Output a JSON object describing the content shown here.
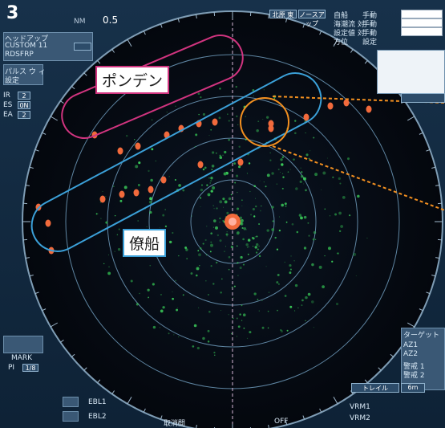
{
  "top": {
    "number": "3",
    "range_unit": "NM",
    "range_value": "0.5",
    "mode_tags": [
      "北原 東",
      "ノースアップ"
    ],
    "info_rows": [
      {
        "label": "自船",
        "val": "手動"
      },
      {
        "label": "海潮流 対",
        "val": "手動"
      },
      {
        "label": "設定値 対",
        "val": "手動"
      },
      {
        "label": "方位",
        "val": "設定"
      }
    ]
  },
  "left": {
    "head_up": "ヘッドアップ",
    "custom": "CUSTOM 11",
    "mode_code": "RDSFRP",
    "pulse": "パルス ウ ィ",
    "setting": "設定",
    "params": [
      {
        "label": "IR",
        "val": "2"
      },
      {
        "label": "ES",
        "val": "0N"
      },
      {
        "label": "EA",
        "val": "2"
      }
    ]
  },
  "callouts": {
    "pontoon": "ポンデン",
    "consort_ship": "僚船"
  },
  "bottom": {
    "mark_label": "MARK",
    "pi_label": "PI",
    "pi_value": "1/8",
    "ebl1": "EBL1",
    "ebl2": "EBL2",
    "vrm1": "VRM1",
    "vrm2": "VRM2",
    "bottom_center_left": "取消間",
    "bottom_center_right": "OFF"
  },
  "right": {
    "tag_label": "ターゲット",
    "az1": "AZ1",
    "az2": "AZ2",
    "hz1": "警戒 1",
    "hz2": "警戒 2",
    "trail": "トレイル",
    "trail_val": "6m"
  },
  "colors": {
    "screen": "#05080f",
    "ring": "#5f86a3",
    "echo_green": "#3ccf5b",
    "target_orange": "#f26a3c",
    "pink": "#d1347f",
    "blue": "#3ba0d8",
    "orange_circle": "#f39020"
  }
}
